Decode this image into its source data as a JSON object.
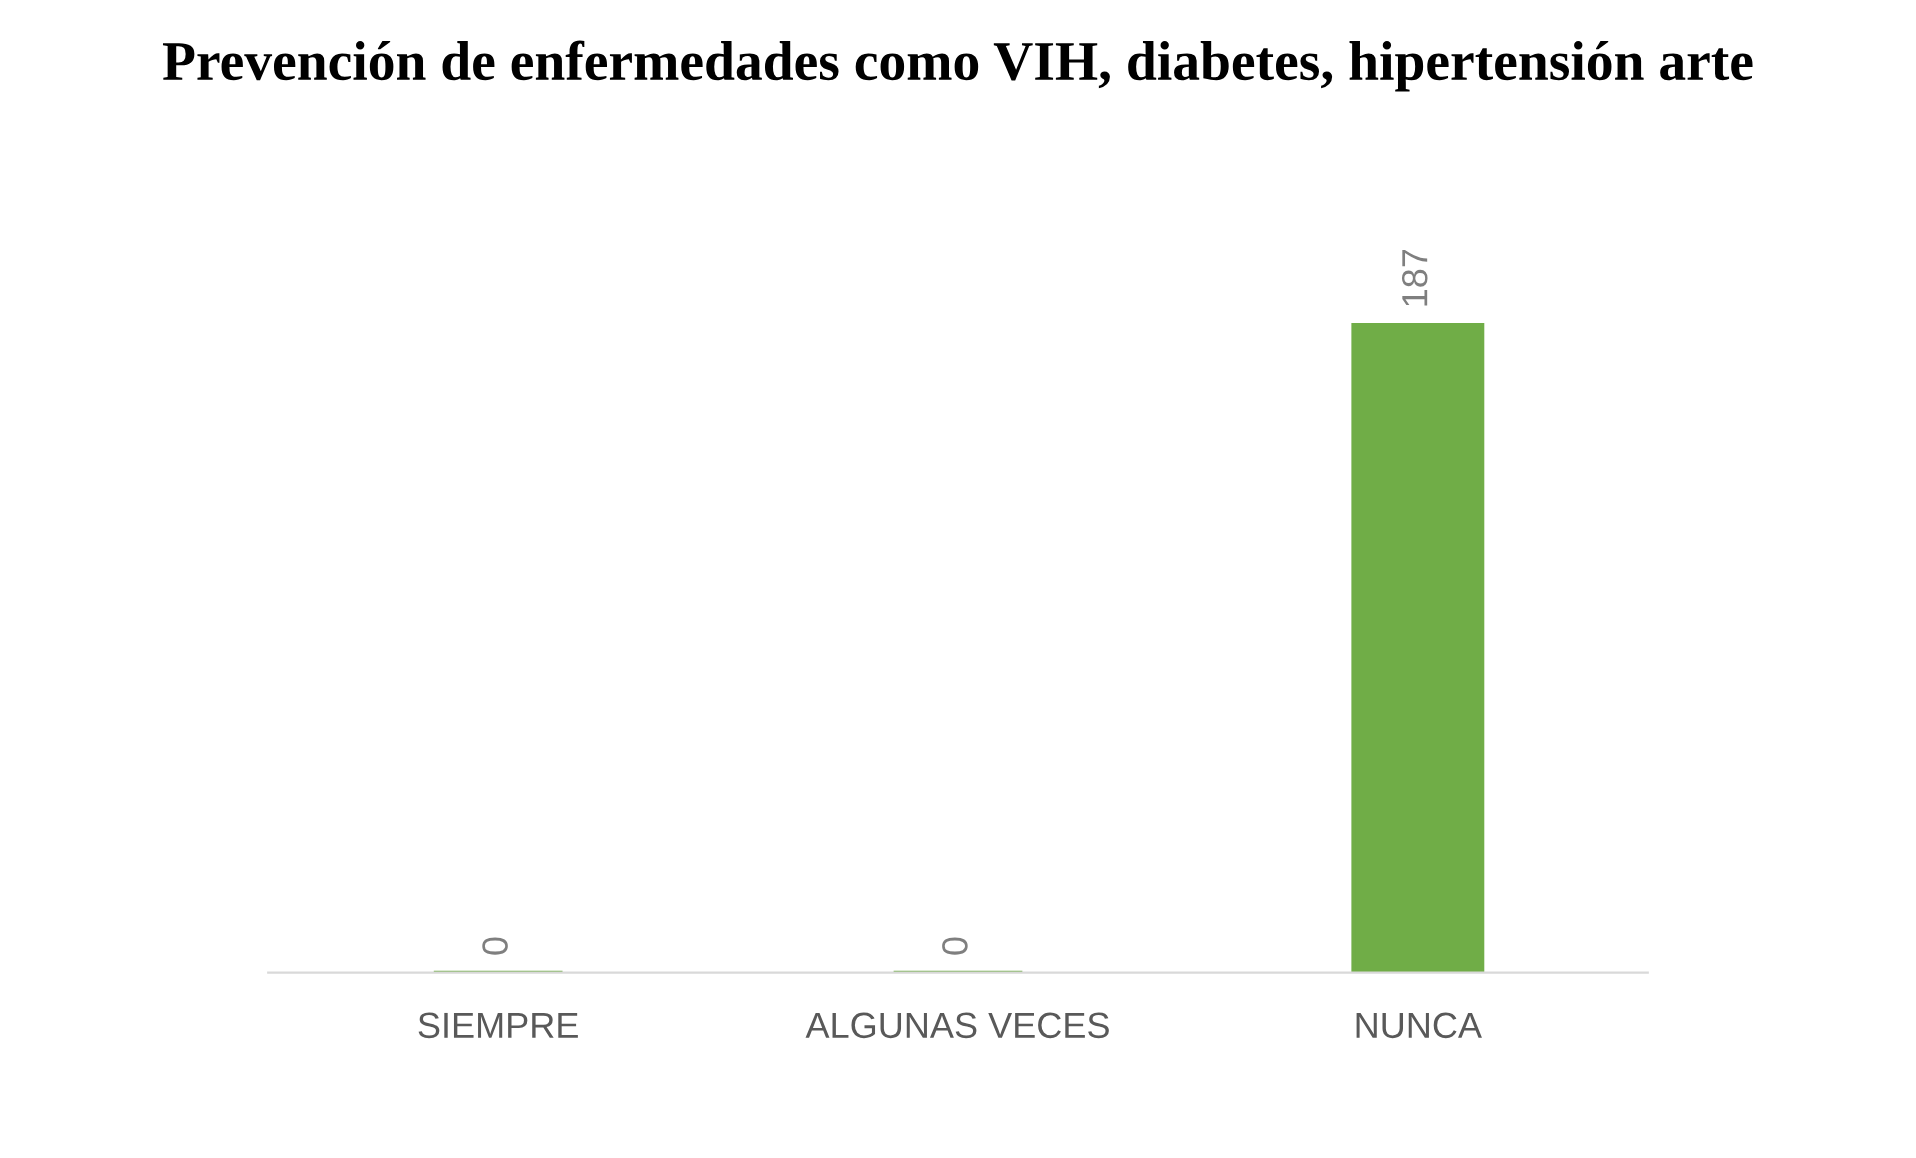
{
  "chart_data": {
    "type": "bar",
    "title": "Prevención de enfermedades como VIH, diabetes, hipertensión arte",
    "categories": [
      "SIEMPRE",
      "ALGUNAS VECES",
      "NUNCA"
    ],
    "values": [
      0,
      0,
      187
    ],
    "color": "#70ad47",
    "data_labels": true,
    "grid": false,
    "legend": false
  }
}
